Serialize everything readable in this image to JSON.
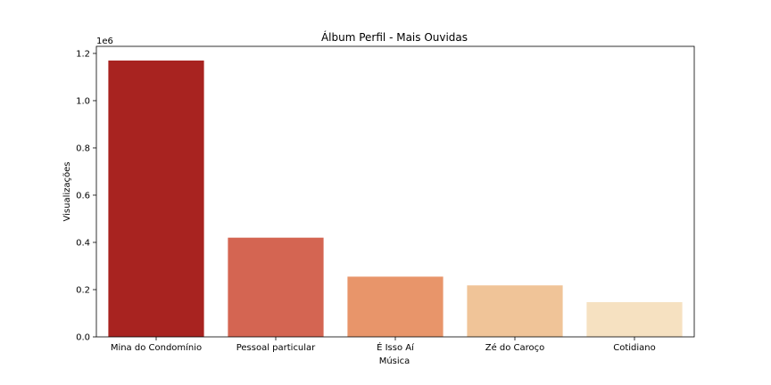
{
  "chart_data": {
    "type": "bar",
    "title": "Álbum Perfil - Mais Ouvidas",
    "xlabel": "Música",
    "ylabel": "Visualizações",
    "y_scale_label": "1e6",
    "ylim": [
      0,
      1.23
    ],
    "y_ticks": [
      0.0,
      0.2,
      0.4,
      0.6,
      0.8,
      1.0,
      1.2
    ],
    "y_tick_labels": [
      "0.0",
      "0.2",
      "0.4",
      "0.6",
      "0.8",
      "1.0",
      "1.2"
    ],
    "categories": [
      "Mina do Condomínio",
      "Pessoal particular",
      "É Isso Aí",
      "Zé do Caroço",
      "Cotidiano"
    ],
    "values": [
      1.17,
      0.42,
      0.255,
      0.218,
      0.147
    ],
    "colors": [
      "#a82320",
      "#d46552",
      "#e8956a",
      "#f0c498",
      "#f6e1c1"
    ],
    "grid": false,
    "legend": "none"
  }
}
